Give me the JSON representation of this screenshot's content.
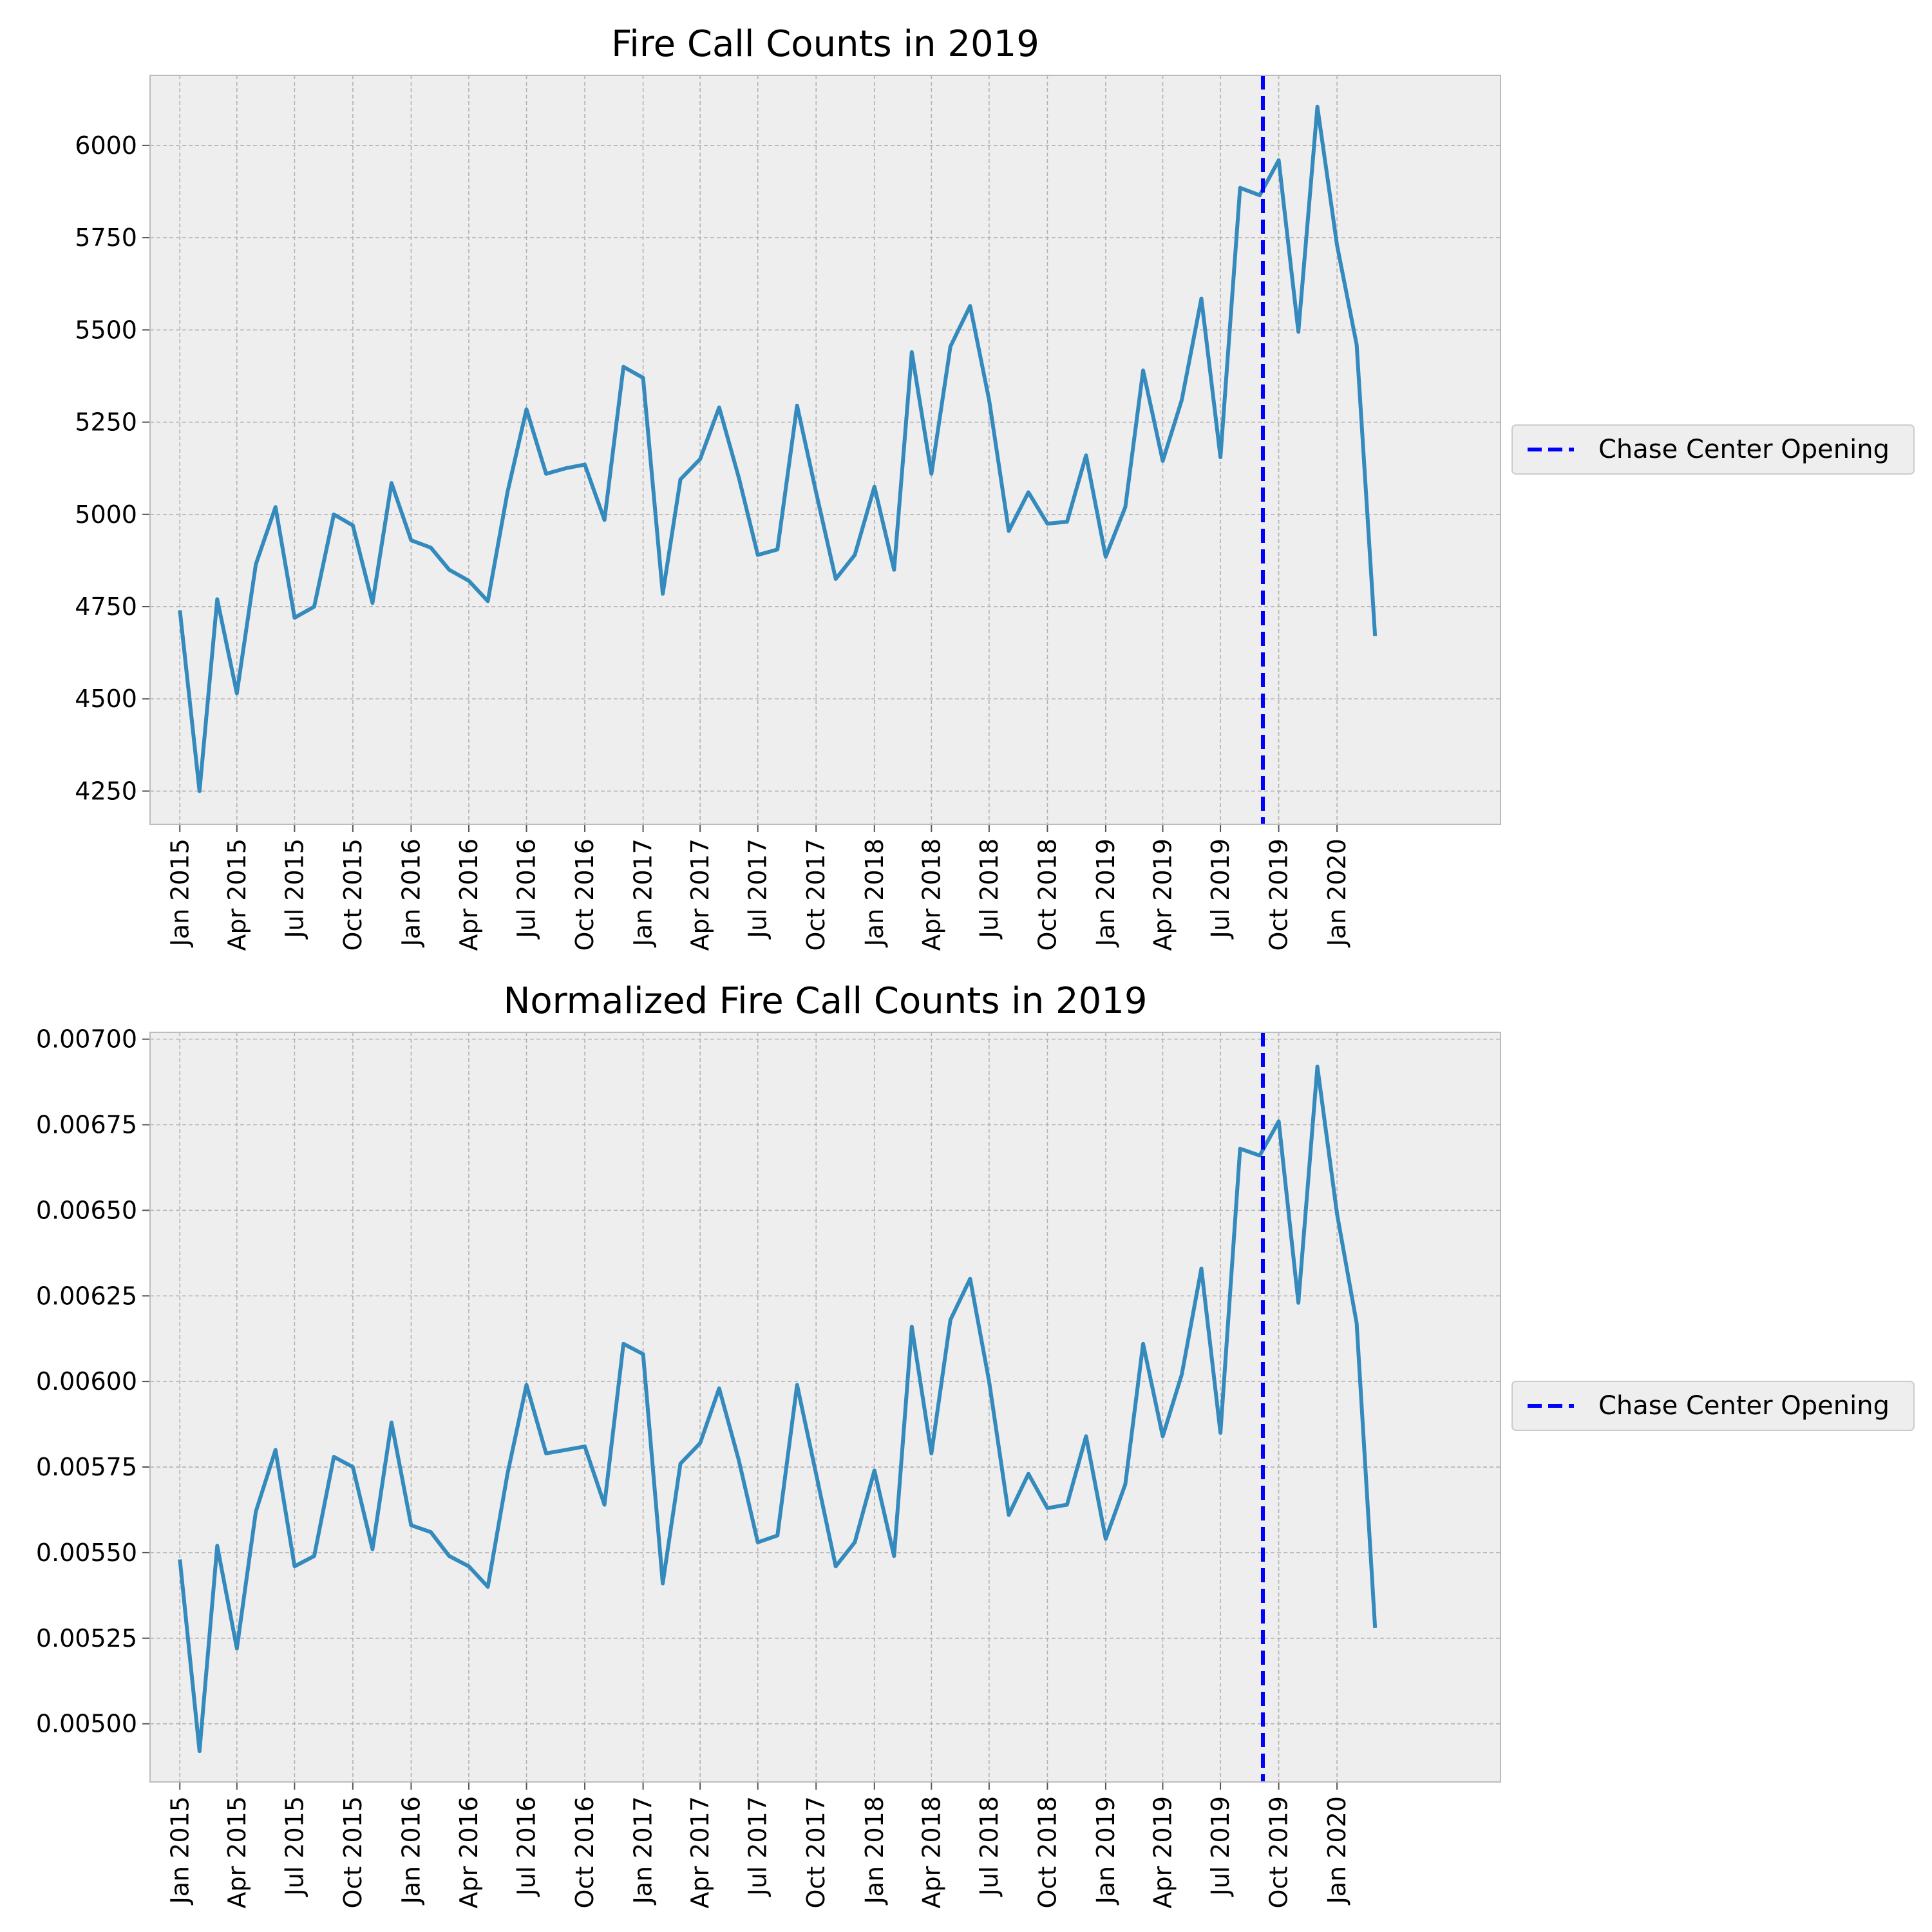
{
  "colors": {
    "line": "#348abd",
    "vline": "#0000ff",
    "plot_bg": "#eeeeee",
    "grid": "#b2b2b2",
    "spine": "#bcbcbc"
  },
  "chart_data": [
    {
      "type": "line",
      "title": "Fire Call Counts in 2019",
      "xlabel": "",
      "ylabel": "",
      "grid": true,
      "legend_position": "right",
      "xlim": [
        "2014-11-15",
        "2020-09-15"
      ],
      "ylim": [
        4160,
        6190
      ],
      "x_ticks": [
        "2015-01",
        "2015-04",
        "2015-07",
        "2015-10",
        "2016-01",
        "2016-04",
        "2016-07",
        "2016-10",
        "2017-01",
        "2017-04",
        "2017-07",
        "2017-10",
        "2018-01",
        "2018-04",
        "2018-07",
        "2018-10",
        "2019-01",
        "2019-04",
        "2019-07",
        "2019-10",
        "2020-01"
      ],
      "x_tick_labels": [
        "Jan 2015",
        "Apr 2015",
        "Jul 2015",
        "Oct 2015",
        "Jan 2016",
        "Apr 2016",
        "Jul 2016",
        "Oct 2016",
        "Jan 2017",
        "Apr 2017",
        "Jul 2017",
        "Oct 2017",
        "Jan 2018",
        "Apr 2018",
        "Jul 2018",
        "Oct 2018",
        "Jan 2019",
        "Apr 2019",
        "Jul 2019",
        "Oct 2019",
        "Jan 2020"
      ],
      "y_ticks": [
        4250,
        4500,
        4750,
        5000,
        5250,
        5500,
        5750,
        6000
      ],
      "y_tick_labels": [
        "4250",
        "4500",
        "4750",
        "5000",
        "5250",
        "5500",
        "5750",
        "6000"
      ],
      "x": [
        "2015-01",
        "2015-02",
        "2015-03",
        "2015-04",
        "2015-05",
        "2015-06",
        "2015-07",
        "2015-08",
        "2015-09",
        "2015-10",
        "2015-11",
        "2015-12",
        "2016-01",
        "2016-02",
        "2016-03",
        "2016-04",
        "2016-05",
        "2016-06",
        "2016-07",
        "2016-08",
        "2016-09",
        "2016-10",
        "2016-11",
        "2016-12",
        "2017-01",
        "2017-02",
        "2017-03",
        "2017-04",
        "2017-05",
        "2017-06",
        "2017-07",
        "2017-08",
        "2017-09",
        "2017-10",
        "2017-11",
        "2017-12",
        "2018-01",
        "2018-02",
        "2018-03",
        "2018-04",
        "2018-05",
        "2018-06",
        "2018-07",
        "2018-08",
        "2018-09",
        "2018-10",
        "2018-11",
        "2018-12",
        "2019-01",
        "2019-02",
        "2019-03",
        "2019-04",
        "2019-05",
        "2019-06",
        "2019-07",
        "2019-08",
        "2019-09",
        "2019-10",
        "2019-11",
        "2019-12",
        "2020-01",
        "2020-02",
        "2020-03"
      ],
      "series": [
        {
          "values": [
            4740,
            4250,
            4770,
            4515,
            4865,
            5020,
            4720,
            4750,
            5000,
            4970,
            4760,
            5085,
            4930,
            4910,
            4850,
            4820,
            4765,
            5060,
            5285,
            5110,
            5125,
            5135,
            4985,
            5400,
            5370,
            4785,
            5095,
            5150,
            5290,
            5100,
            4890,
            4905,
            5295,
            5060,
            4825,
            4890,
            5075,
            4850,
            5440,
            5110,
            5455,
            5565,
            5310,
            4955,
            5060,
            4975,
            4980,
            5160,
            4885,
            5020,
            5390,
            5145,
            5310,
            5585,
            5155,
            5885,
            5865,
            5960,
            5495,
            6105,
            5730,
            5460,
            4670
          ]
        }
      ],
      "vline": {
        "x": "2019-09-06",
        "label": "Chase Center Opening"
      }
    },
    {
      "type": "line",
      "title": "Normalized Fire Call Counts in 2019",
      "xlabel": "",
      "ylabel": "",
      "grid": true,
      "legend_position": "right",
      "xlim": [
        "2014-11-15",
        "2020-09-15"
      ],
      "ylim": [
        0.00483,
        0.00702
      ],
      "x_ticks": [
        "2015-01",
        "2015-04",
        "2015-07",
        "2015-10",
        "2016-01",
        "2016-04",
        "2016-07",
        "2016-10",
        "2017-01",
        "2017-04",
        "2017-07",
        "2017-10",
        "2018-01",
        "2018-04",
        "2018-07",
        "2018-10",
        "2019-01",
        "2019-04",
        "2019-07",
        "2019-10",
        "2020-01"
      ],
      "x_tick_labels": [
        "Jan 2015",
        "Apr 2015",
        "Jul 2015",
        "Oct 2015",
        "Jan 2016",
        "Apr 2016",
        "Jul 2016",
        "Oct 2016",
        "Jan 2017",
        "Apr 2017",
        "Jul 2017",
        "Oct 2017",
        "Jan 2018",
        "Apr 2018",
        "Jul 2018",
        "Oct 2018",
        "Jan 2019",
        "Apr 2019",
        "Jul 2019",
        "Oct 2019",
        "Jan 2020"
      ],
      "y_ticks": [
        0.005,
        0.00525,
        0.0055,
        0.00575,
        0.006,
        0.00625,
        0.0065,
        0.00675,
        0.007
      ],
      "y_tick_labels": [
        "0.00500",
        "0.00525",
        "0.00550",
        "0.00575",
        "0.00600",
        "0.00625",
        "0.00650",
        "0.00675",
        "0.00700"
      ],
      "x": [
        "2015-01",
        "2015-02",
        "2015-03",
        "2015-04",
        "2015-05",
        "2015-06",
        "2015-07",
        "2015-08",
        "2015-09",
        "2015-10",
        "2015-11",
        "2015-12",
        "2016-01",
        "2016-02",
        "2016-03",
        "2016-04",
        "2016-05",
        "2016-06",
        "2016-07",
        "2016-08",
        "2016-09",
        "2016-10",
        "2016-11",
        "2016-12",
        "2017-01",
        "2017-02",
        "2017-03",
        "2017-04",
        "2017-05",
        "2017-06",
        "2017-07",
        "2017-08",
        "2017-09",
        "2017-10",
        "2017-11",
        "2017-12",
        "2018-01",
        "2018-02",
        "2018-03",
        "2018-04",
        "2018-05",
        "2018-06",
        "2018-07",
        "2018-08",
        "2018-09",
        "2018-10",
        "2018-11",
        "2018-12",
        "2019-01",
        "2019-02",
        "2019-03",
        "2019-04",
        "2019-05",
        "2019-06",
        "2019-07",
        "2019-08",
        "2019-09",
        "2019-10",
        "2019-11",
        "2019-12",
        "2020-01",
        "2020-02",
        "2020-03"
      ],
      "series": [
        {
          "values": [
            0.00548,
            0.00492,
            0.00552,
            0.00522,
            0.00562,
            0.0058,
            0.00546,
            0.00549,
            0.00578,
            0.00575,
            0.00551,
            0.00588,
            0.00558,
            0.00556,
            0.00549,
            0.00546,
            0.0054,
            0.00573,
            0.00599,
            0.00579,
            0.0058,
            0.00581,
            0.00564,
            0.00611,
            0.00608,
            0.00541,
            0.00576,
            0.00582,
            0.00598,
            0.00577,
            0.00553,
            0.00555,
            0.00599,
            0.00573,
            0.00546,
            0.00553,
            0.00574,
            0.00549,
            0.00616,
            0.00579,
            0.00618,
            0.0063,
            0.006,
            0.00561,
            0.00573,
            0.00563,
            0.00564,
            0.00584,
            0.00554,
            0.0057,
            0.00611,
            0.00584,
            0.00602,
            0.00633,
            0.00585,
            0.00668,
            0.00666,
            0.00676,
            0.00623,
            0.00692,
            0.00649,
            0.00617,
            0.00528
          ]
        }
      ],
      "vline": {
        "x": "2019-09-06",
        "label": "Chase Center Opening"
      }
    }
  ]
}
